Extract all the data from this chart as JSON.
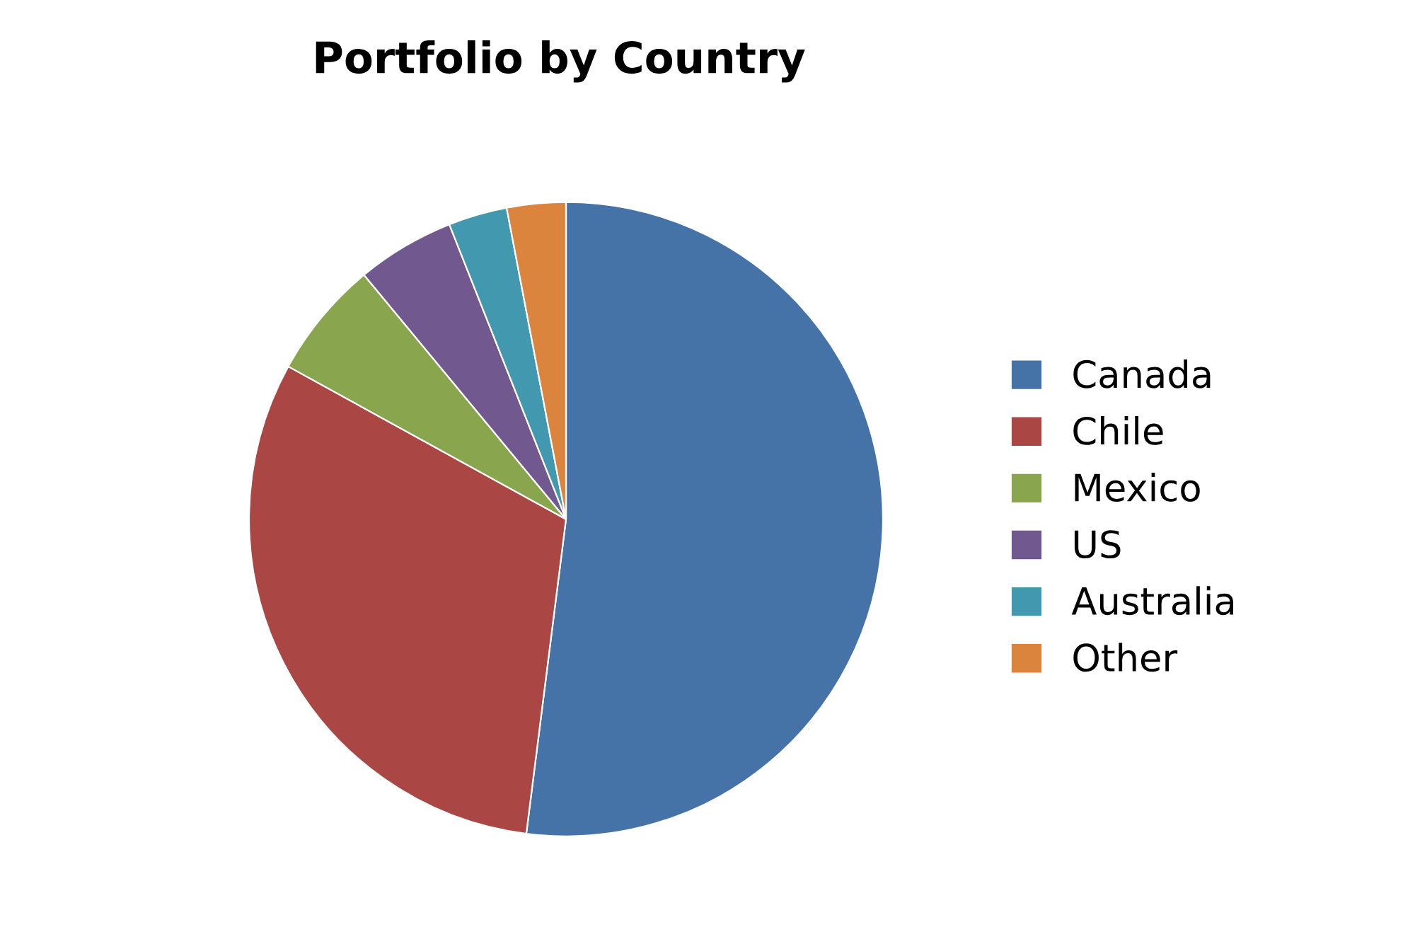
{
  "chart_data": {
    "type": "pie",
    "title": "Portfolio by Country",
    "categories": [
      "Canada",
      "Chile",
      "Mexico",
      "US",
      "Australia",
      "Other"
    ],
    "values": [
      52,
      31,
      6,
      5,
      3,
      3
    ],
    "colors": [
      "#4572a7",
      "#aa4643",
      "#89a54e",
      "#71588f",
      "#4198af",
      "#db843d"
    ],
    "legend": "right"
  }
}
